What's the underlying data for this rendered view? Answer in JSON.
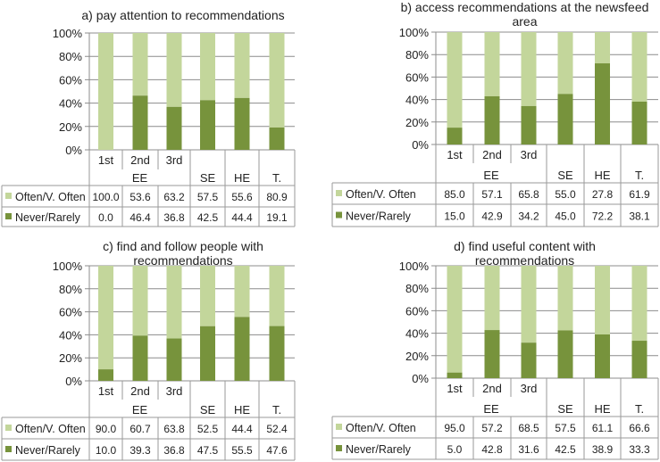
{
  "chart_data": [
    {
      "type": "bar",
      "stacked": true,
      "title": "a) pay attention to recommendations",
      "title_lines": [
        "a) pay attention to recommendations"
      ],
      "categories": [
        "1st",
        "2nd",
        "3rd",
        "SE",
        "HE",
        "T."
      ],
      "group_label": "EE",
      "grouped_categories": [
        "1st",
        "2nd",
        "3rd"
      ],
      "yticks": [
        "0%",
        "20%",
        "40%",
        "60%",
        "80%",
        "100%"
      ],
      "ylim": [
        0,
        100
      ],
      "series": [
        {
          "name": "Often/V. Often",
          "values": [
            "100.0",
            "53.6",
            "63.2",
            "57.5",
            "55.6",
            "80.9"
          ]
        },
        {
          "name": "Never/Rarely",
          "values": [
            "0.0",
            "46.4",
            "36.8",
            "42.5",
            "44.4",
            "19.1"
          ]
        }
      ]
    },
    {
      "type": "bar",
      "stacked": true,
      "title": "b) access recommendations at the newsfeed area",
      "title_lines": [
        "b) access recommendations at the newsfeed",
        "area"
      ],
      "categories": [
        "1st",
        "2nd",
        "3rd",
        "SE",
        "HE",
        "T."
      ],
      "group_label": "EE",
      "grouped_categories": [
        "1st",
        "2nd",
        "3rd"
      ],
      "yticks": [
        "0%",
        "20%",
        "40%",
        "60%",
        "80%",
        "100%"
      ],
      "ylim": [
        0,
        100
      ],
      "series": [
        {
          "name": "Often/V. Often",
          "values": [
            "85.0",
            "57.1",
            "65.8",
            "55.0",
            "27.8",
            "61.9"
          ]
        },
        {
          "name": "Never/Rarely",
          "values": [
            "15.0",
            "42.9",
            "34.2",
            "45.0",
            "72.2",
            "38.1"
          ]
        }
      ]
    },
    {
      "type": "bar",
      "stacked": true,
      "title": "c) find and follow people with recommendations",
      "title_lines": [
        "c) find and follow people with",
        "recommendations"
      ],
      "categories": [
        "1st",
        "2nd",
        "3rd",
        "SE",
        "HE",
        "T."
      ],
      "group_label": "EE",
      "grouped_categories": [
        "1st",
        "2nd",
        "3rd"
      ],
      "yticks": [
        "0%",
        "20%",
        "40%",
        "60%",
        "80%",
        "100%"
      ],
      "ylim": [
        0,
        100
      ],
      "series": [
        {
          "name": "Often/V. Often",
          "values": [
            "90.0",
            "60.7",
            "63.8",
            "52.5",
            "44.4",
            "52.4"
          ]
        },
        {
          "name": "Never/Rarely",
          "values": [
            "10.0",
            "39.3",
            "36.8",
            "47.5",
            "55.5",
            "47.6"
          ]
        }
      ]
    },
    {
      "type": "bar",
      "stacked": true,
      "title": "d) find useful content with recommendations",
      "title_lines": [
        "d) find useful content with",
        "recommendations"
      ],
      "categories": [
        "1st",
        "2nd",
        "3rd",
        "SE",
        "HE",
        "T."
      ],
      "group_label": "EE",
      "grouped_categories": [
        "1st",
        "2nd",
        "3rd"
      ],
      "yticks": [
        "0%",
        "20%",
        "40%",
        "60%",
        "80%",
        "100%"
      ],
      "ylim": [
        0,
        100
      ],
      "series": [
        {
          "name": "Often/V. Often",
          "values": [
            "95.0",
            "57.2",
            "68.5",
            "57.5",
            "61.1",
            "66.6"
          ]
        },
        {
          "name": "Never/Rarely",
          "values": [
            "5.0",
            "42.8",
            "31.6",
            "42.5",
            "38.9",
            "33.3"
          ]
        }
      ]
    }
  ],
  "colors": {
    "often": "#c3d69b",
    "never": "#77933c",
    "grid": "#8c8c8c",
    "table_border": "#9a9a9a"
  }
}
